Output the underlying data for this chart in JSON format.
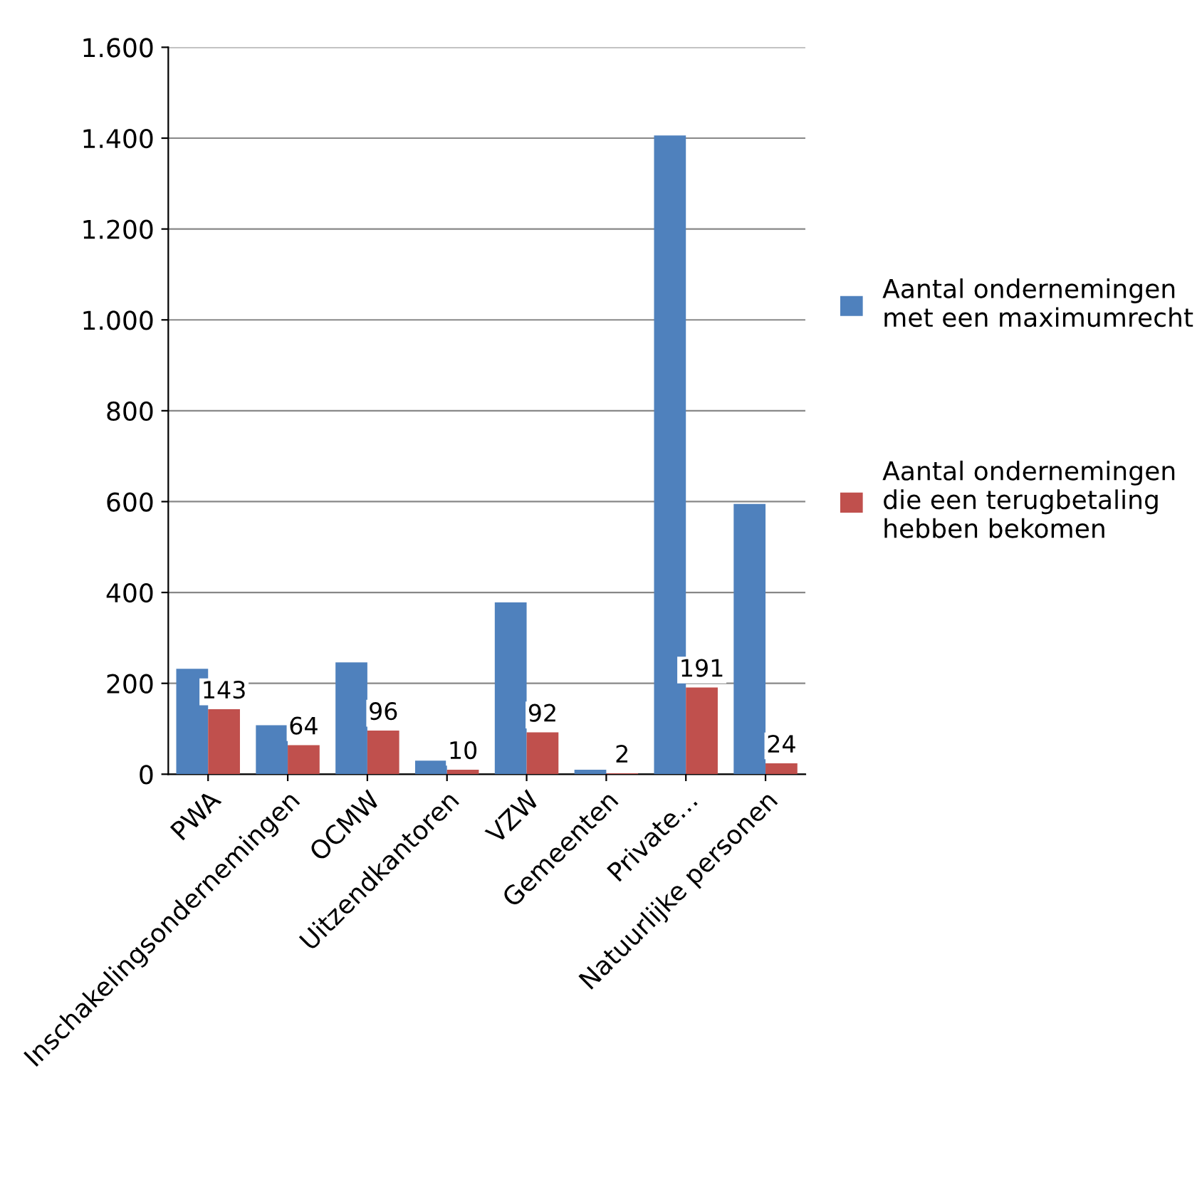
{
  "chart_data": {
    "type": "bar",
    "categories": [
      "PWA",
      "Inschakelingsondernemingen",
      "OCMW",
      "Uitzendkantoren",
      "VZW",
      "Gemeenten",
      "Private…",
      "Natuurlijke personen"
    ],
    "series": [
      {
        "name": "Aantal ondernemingen met een maximumrecht",
        "color": "#4f81bd",
        "values": [
          232,
          108,
          246,
          30,
          378,
          10,
          1406,
          595
        ]
      },
      {
        "name": "Aantal ondernemingen die een terugbetaling hebben bekomen",
        "color": "#c0504d",
        "values": [
          143,
          64,
          96,
          10,
          92,
          2,
          191,
          24
        ],
        "value_labels": [
          "143",
          "64",
          "96",
          "10",
          "92",
          "2",
          "191",
          "24"
        ]
      }
    ],
    "ylim": [
      0,
      1600
    ],
    "yticks": [
      0,
      {
        "value": 200,
        "label": "200"
      },
      {
        "value": 400,
        "label": "400"
      },
      {
        "value": 600,
        "label": "600"
      },
      {
        "value": 800,
        "label": "800"
      },
      {
        "value": 1000,
        "label": "1.000"
      },
      {
        "value": 1200,
        "label": "1.200"
      },
      {
        "value": 1400,
        "label": "1.400"
      },
      {
        "value": 1600,
        "label": "1.600"
      }
    ],
    "grid": "y",
    "legend": "right"
  }
}
